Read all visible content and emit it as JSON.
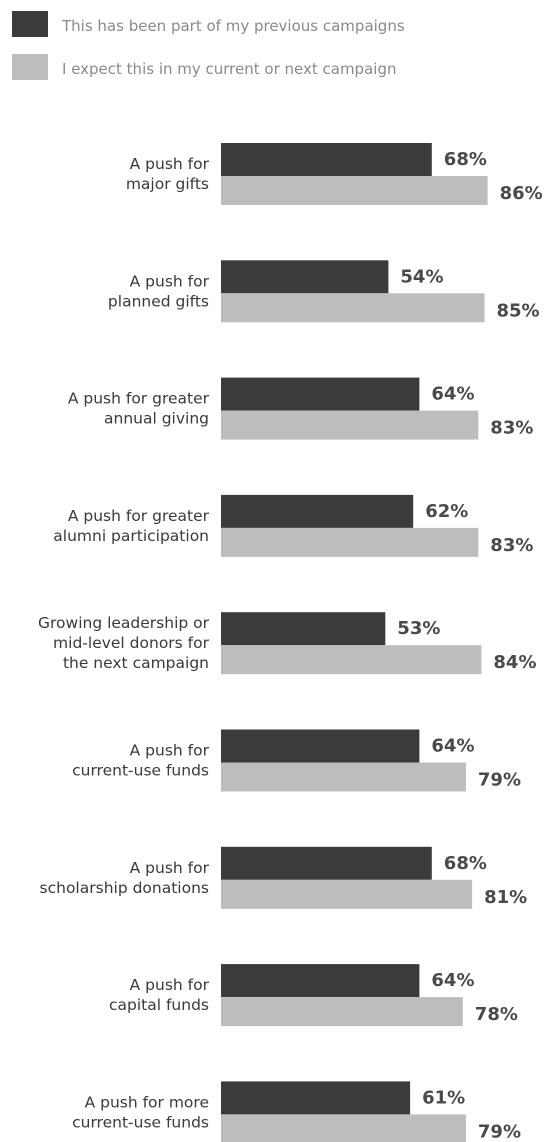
{
  "chart_data": {
    "type": "bar",
    "orientation": "horizontal",
    "legend_position": "top-left",
    "grid": false,
    "xlim": [
      0,
      100
    ],
    "series": [
      {
        "name": "This has been part of my previous campaigns",
        "color": "#3b3b3b",
        "values": [
          68,
          54,
          64,
          62,
          53,
          64,
          68,
          64,
          61
        ],
        "labels": [
          "68%",
          "54%",
          "64%",
          "62%",
          "53%",
          "64%",
          "68%",
          "64%",
          "61%"
        ]
      },
      {
        "name": "I expect this in my current or next campaign",
        "color": "#bdbdbd",
        "values": [
          86,
          85,
          83,
          83,
          84,
          79,
          81,
          78,
          79
        ],
        "labels": [
          "86%",
          "85%",
          "83%",
          "83%",
          "84%",
          "79%",
          "81%",
          "78%",
          "79%"
        ]
      }
    ],
    "categories": [
      [
        "A push for",
        "major gifts"
      ],
      [
        "A push for",
        "planned gifts"
      ],
      [
        "A push for greater",
        "annual giving"
      ],
      [
        "A push for greater",
        "alumni participation"
      ],
      [
        "Growing leadership or",
        "mid-level donors for",
        "the next campaign"
      ],
      [
        "A push for",
        "current-use funds"
      ],
      [
        "A push for",
        "scholarship donations"
      ],
      [
        "A push for",
        "capital funds"
      ],
      [
        "A push for more",
        "current-use funds"
      ]
    ]
  }
}
